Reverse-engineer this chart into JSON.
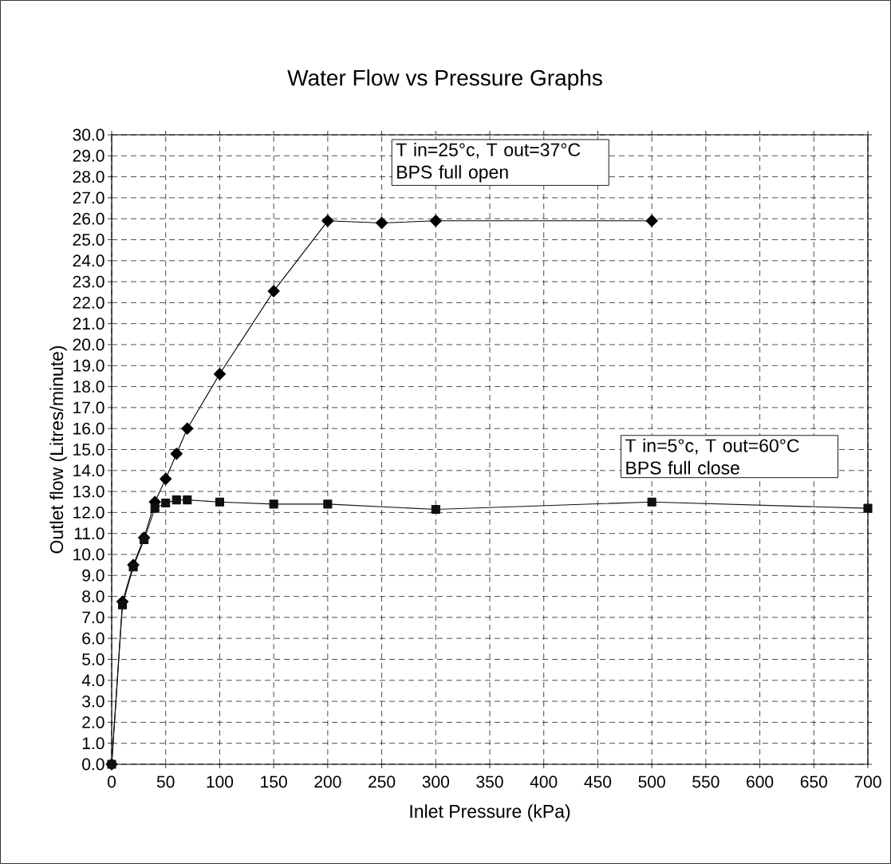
{
  "chart_data": {
    "type": "line",
    "title": "Water Flow vs  Pressure Graphs",
    "xlabel": "Inlet Pressure (kPa)",
    "ylabel": "Outlet flow (Litres/minute)",
    "xlim": [
      0,
      700
    ],
    "ylim": [
      0,
      30
    ],
    "xticks": [
      0,
      50,
      100,
      150,
      200,
      250,
      300,
      350,
      400,
      450,
      500,
      550,
      600,
      650,
      700
    ],
    "yticks": [
      {
        "value": 0,
        "label": "0.0"
      },
      {
        "value": 1,
        "label": "1.0"
      },
      {
        "value": 2,
        "label": "2.0"
      },
      {
        "value": 3,
        "label": "3.0"
      },
      {
        "value": 4,
        "label": "4.0"
      },
      {
        "value": 5,
        "label": "5.0"
      },
      {
        "value": 6,
        "label": "6.0"
      },
      {
        "value": 7,
        "label": "7.0"
      },
      {
        "value": 8,
        "label": "8.0"
      },
      {
        "value": 9,
        "label": "9.0"
      },
      {
        "value": 10,
        "label": "10.0"
      },
      {
        "value": 11,
        "label": "11.0"
      },
      {
        "value": 12,
        "label": "12.0"
      },
      {
        "value": 13,
        "label": "13.0"
      },
      {
        "value": 14,
        "label": "14.0"
      },
      {
        "value": 15,
        "label": "15.0"
      },
      {
        "value": 16,
        "label": "16.0"
      },
      {
        "value": 17,
        "label": "17.0"
      },
      {
        "value": 18,
        "label": "18.0"
      },
      {
        "value": 19,
        "label": "19.0"
      },
      {
        "value": 20,
        "label": "20.0"
      },
      {
        "value": 21,
        "label": "21.0"
      },
      {
        "value": 22,
        "label": "22.0"
      },
      {
        "value": 23,
        "label": "23.0"
      },
      {
        "value": 24,
        "label": "24.0"
      },
      {
        "value": 25,
        "label": "25.0"
      },
      {
        "value": 26,
        "label": "26.0"
      },
      {
        "value": 27,
        "label": "27.0"
      },
      {
        "value": 28,
        "label": "28.0"
      },
      {
        "value": 29,
        "label": "29.0"
      },
      {
        "value": 30,
        "label": "30.0"
      }
    ],
    "grid": true,
    "legend": "top",
    "line_style": "solid",
    "series": [
      {
        "name": "T in=25°c, T out=37°C BPS full open",
        "color": "#000000",
        "marker": "diamond",
        "x": [
          0,
          10,
          20,
          30,
          40,
          50,
          60,
          70,
          100,
          150,
          200,
          250,
          300,
          500
        ],
        "values": [
          0,
          7.75,
          9.5,
          10.8,
          12.5,
          13.6,
          14.8,
          16.0,
          18.6,
          22.55,
          25.9,
          25.8,
          25.9,
          25.9
        ]
      },
      {
        "name": "T in=5°c, T out=60°C BPS full close",
        "color": "#101010",
        "marker": "square",
        "x": [
          0,
          10,
          20,
          30,
          40,
          50,
          60,
          70,
          100,
          150,
          200,
          300,
          500,
          700
        ],
        "values": [
          0,
          7.6,
          9.4,
          10.7,
          12.2,
          12.45,
          12.6,
          12.6,
          12.5,
          12.4,
          12.4,
          12.15,
          12.5,
          12.2
        ]
      }
    ]
  }
}
